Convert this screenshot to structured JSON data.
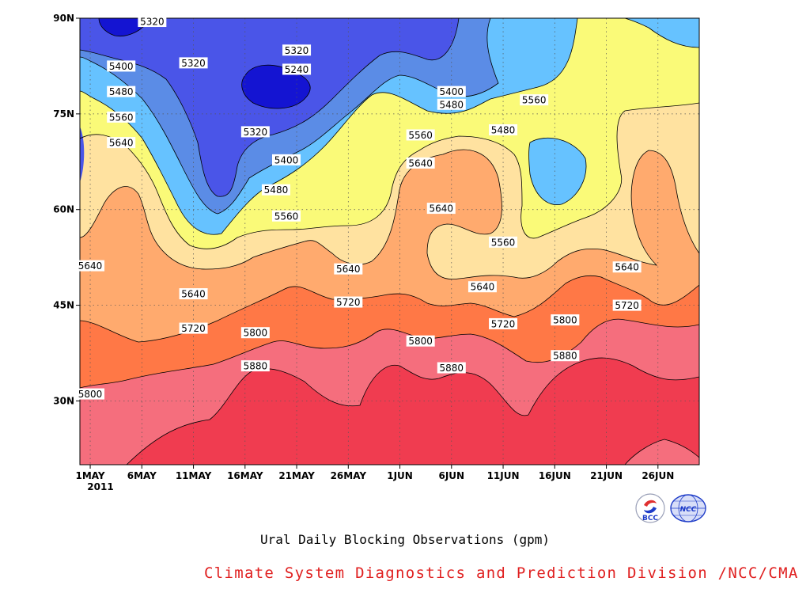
{
  "chart_data": {
    "type": "contour",
    "title": "Ural Daily Blocking Observations (gpm)",
    "x_tick_labels": [
      "1MAY",
      "6MAY",
      "11MAY",
      "16MAY",
      "21MAY",
      "26MAY",
      "1JUN",
      "6JUN",
      "11JUN",
      "16JUN",
      "21JUN",
      "26JUN"
    ],
    "x_year_label": "2011",
    "x_range": [
      "2011-04-30",
      "2011-06-29"
    ],
    "y_tick_labels": [
      "90N",
      "75N",
      "60N",
      "45N",
      "30N"
    ],
    "y_ticks": [
      90,
      75,
      60,
      45,
      30
    ],
    "y_range": [
      20,
      90
    ],
    "contour_levels": [
      5240,
      5320,
      5400,
      5480,
      5560,
      5640,
      5720,
      5800,
      5880
    ],
    "fill_colors": [
      "#1414d2",
      "#4a55e8",
      "#5b8ce6",
      "#66c2ff",
      "#fafa78",
      "#ffe2a0",
      "#ffaa6e",
      "#ff7846",
      "#f56e7d",
      "#f03c50"
    ],
    "contour_labels": [
      {
        "date": "2011-05-07",
        "lat": 89.5,
        "value": "5320"
      },
      {
        "date": "2011-05-21",
        "lat": 85.0,
        "value": "5320"
      },
      {
        "date": "2011-05-21",
        "lat": 82.0,
        "value": "5240"
      },
      {
        "date": "2011-05-11",
        "lat": 83.0,
        "value": "5320"
      },
      {
        "date": "2011-05-04",
        "lat": 82.5,
        "value": "5400"
      },
      {
        "date": "2011-05-04",
        "lat": 78.5,
        "value": "5480"
      },
      {
        "date": "2011-05-04",
        "lat": 74.5,
        "value": "5560"
      },
      {
        "date": "2011-05-04",
        "lat": 70.5,
        "value": "5640"
      },
      {
        "date": "2011-05-17",
        "lat": 72.2,
        "value": "5320"
      },
      {
        "date": "2011-05-20",
        "lat": 67.8,
        "value": "5400"
      },
      {
        "date": "2011-05-19",
        "lat": 63.1,
        "value": "5480"
      },
      {
        "date": "2011-05-20",
        "lat": 59.0,
        "value": "5560"
      },
      {
        "date": "2011-06-05",
        "lat": 78.5,
        "value": "5400"
      },
      {
        "date": "2011-06-05",
        "lat": 76.5,
        "value": "5480"
      },
      {
        "date": "2011-06-02",
        "lat": 71.7,
        "value": "5560"
      },
      {
        "date": "2011-06-02",
        "lat": 67.3,
        "value": "5640"
      },
      {
        "date": "2011-06-04",
        "lat": 60.2,
        "value": "5640"
      },
      {
        "date": "2011-06-13",
        "lat": 77.2,
        "value": "5560"
      },
      {
        "date": "2011-06-10",
        "lat": 72.5,
        "value": "5480"
      },
      {
        "date": "2011-06-10",
        "lat": 54.9,
        "value": "5560"
      },
      {
        "date": "2011-06-08",
        "lat": 47.9,
        "value": "5640"
      },
      {
        "date": "2011-06-22",
        "lat": 51.0,
        "value": "5640"
      },
      {
        "date": "2011-06-22",
        "lat": 45.0,
        "value": "5720"
      },
      {
        "date": "2011-05-01",
        "lat": 51.2,
        "value": "5640"
      },
      {
        "date": "2011-05-11",
        "lat": 46.8,
        "value": "5640"
      },
      {
        "date": "2011-05-26",
        "lat": 50.7,
        "value": "5640"
      },
      {
        "date": "2011-05-26",
        "lat": 45.5,
        "value": "5720"
      },
      {
        "date": "2011-05-11",
        "lat": 41.4,
        "value": "5720"
      },
      {
        "date": "2011-05-17",
        "lat": 40.7,
        "value": "5800"
      },
      {
        "date": "2011-06-10",
        "lat": 42.1,
        "value": "5720"
      },
      {
        "date": "2011-06-16",
        "lat": 42.7,
        "value": "5800"
      },
      {
        "date": "2011-06-02",
        "lat": 39.4,
        "value": "5800"
      },
      {
        "date": "2011-05-17",
        "lat": 35.5,
        "value": "5880"
      },
      {
        "date": "2011-06-05",
        "lat": 35.2,
        "value": "5880"
      },
      {
        "date": "2011-06-16",
        "lat": 37.1,
        "value": "5880"
      },
      {
        "date": "2011-05-01",
        "lat": 31.1,
        "value": "5800"
      }
    ]
  },
  "footer": {
    "credit": "Climate System Diagnostics and Prediction Division /NCC/CMA",
    "logo_bcc_text": "BCC",
    "logo_ncc_text": "NCC"
  },
  "colors": {
    "credit": "#e02020",
    "logo_blue": "#1e3cc8",
    "logo_red": "#e03030"
  }
}
